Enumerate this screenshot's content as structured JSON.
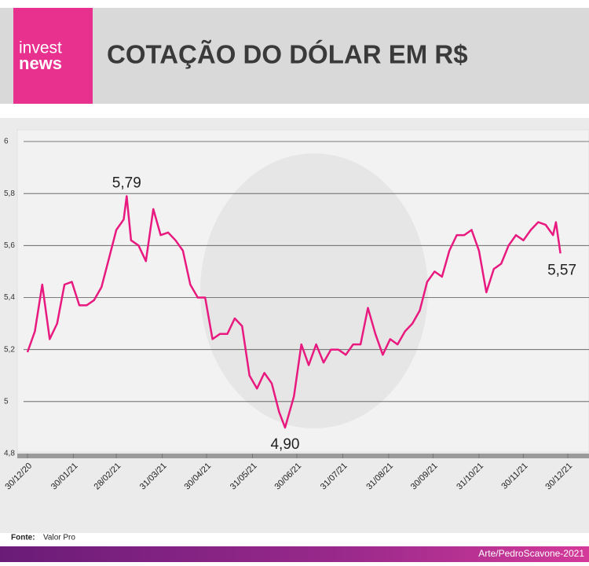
{
  "brand": {
    "line1": "invest",
    "line2": "news"
  },
  "header": {
    "title": "COTAÇÃO DO DÓLAR EM R$"
  },
  "footer": {
    "source_label": "Fonte:",
    "source": "Valor Pro",
    "credit": "Arte/PedroScavone-2021"
  },
  "chart_data": {
    "type": "line",
    "x": [
      "30/12/20",
      "04/01/21",
      "09/01/21",
      "14/01/21",
      "19/01/21",
      "24/01/21",
      "29/01/21",
      "03/02/21",
      "08/02/21",
      "13/02/21",
      "18/02/21",
      "23/02/21",
      "28/02/21",
      "05/03/21",
      "07/03/21",
      "10/03/21",
      "15/03/21",
      "20/03/21",
      "25/03/21",
      "30/03/21",
      "04/04/21",
      "09/04/21",
      "14/04/21",
      "19/04/21",
      "24/04/21",
      "29/04/21",
      "04/05/21",
      "09/05/21",
      "14/05/21",
      "19/05/21",
      "24/05/21",
      "29/05/21",
      "03/06/21",
      "08/06/21",
      "13/06/21",
      "18/06/21",
      "22/06/21",
      "28/06/21",
      "03/07/21",
      "08/07/21",
      "13/07/21",
      "18/07/21",
      "23/07/21",
      "28/07/21",
      "02/08/21",
      "07/08/21",
      "12/08/21",
      "17/08/21",
      "22/08/21",
      "27/08/21",
      "01/09/21",
      "06/09/21",
      "11/09/21",
      "16/09/21",
      "21/09/21",
      "26/09/21",
      "01/10/21",
      "06/10/21",
      "11/10/21",
      "16/10/21",
      "21/10/21",
      "26/10/21",
      "31/10/21",
      "05/11/21",
      "10/11/21",
      "15/11/21",
      "20/11/21",
      "25/11/21",
      "30/11/21",
      "05/12/21",
      "10/12/21",
      "15/12/21",
      "20/12/21",
      "22/12/21",
      "25/12/21"
    ],
    "series": [
      {
        "color": "#e8197f",
        "values": [
          5.19,
          5.27,
          5.45,
          5.24,
          5.3,
          5.45,
          5.46,
          5.37,
          5.37,
          5.39,
          5.44,
          5.55,
          5.66,
          5.7,
          5.79,
          5.62,
          5.6,
          5.54,
          5.74,
          5.64,
          5.65,
          5.62,
          5.58,
          5.45,
          5.4,
          5.4,
          5.24,
          5.26,
          5.26,
          5.32,
          5.29,
          5.1,
          5.05,
          5.11,
          5.07,
          4.96,
          4.9,
          5.02,
          5.22,
          5.14,
          5.22,
          5.15,
          5.2,
          5.2,
          5.18,
          5.22,
          5.22,
          5.36,
          5.26,
          5.18,
          5.24,
          5.22,
          5.27,
          5.3,
          5.35,
          5.46,
          5.5,
          5.48,
          5.58,
          5.64,
          5.64,
          5.66,
          5.58,
          5.42,
          5.51,
          5.53,
          5.6,
          5.64,
          5.62,
          5.66,
          5.69,
          5.68,
          5.64,
          5.69,
          5.57
        ],
        "value_labels": [
          null,
          null,
          null,
          null,
          null,
          null,
          null,
          null,
          null,
          null,
          null,
          null,
          null,
          null,
          "5,79",
          null,
          null,
          null,
          null,
          null,
          null,
          null,
          null,
          null,
          null,
          null,
          null,
          null,
          null,
          null,
          null,
          null,
          null,
          null,
          null,
          null,
          "4,90",
          null,
          null,
          null,
          null,
          null,
          null,
          null,
          null,
          null,
          null,
          null,
          null,
          null,
          null,
          null,
          null,
          null,
          null,
          null,
          null,
          null,
          null,
          null,
          null,
          null,
          null,
          null,
          null,
          null,
          null,
          null,
          null,
          null,
          null,
          null,
          null,
          null,
          "5,57"
        ]
      }
    ],
    "xlim": [
      "30/12/20",
      "30/12/21"
    ],
    "xticks": [
      "30/12/20",
      "30/01/21",
      "28/02/21",
      "31/03/21",
      "30/04/21",
      "31/05/21",
      "30/06/21",
      "31/07/21",
      "31/08/21",
      "30/09/21",
      "31/10/21",
      "30/11/21",
      "30/12/21"
    ],
    "ylim": [
      {
        "value": 4.8,
        "label": "4,8"
      },
      6
    ],
    "yticks": [
      {
        "value": 4.8,
        "label": "4,8"
      },
      5,
      {
        "value": 5.2,
        "label": "5,2"
      },
      {
        "value": 5.4,
        "label": "5,4"
      },
      {
        "value": 5.6,
        "label": "5,6"
      },
      {
        "value": 5.8,
        "label": "5,8"
      },
      6
    ],
    "grid": true
  }
}
